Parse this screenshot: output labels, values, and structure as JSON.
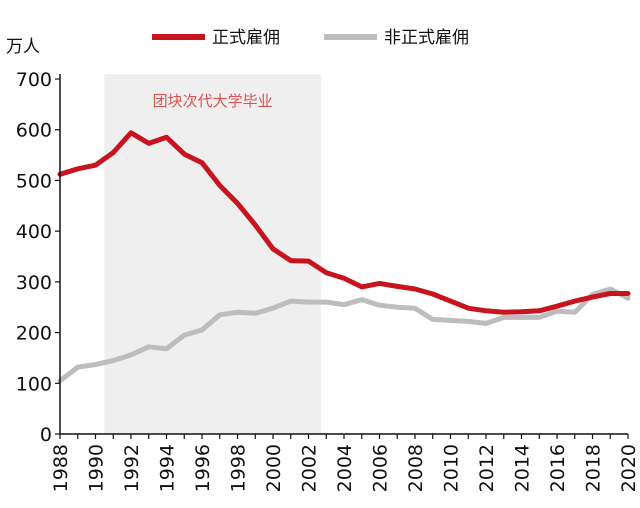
{
  "chart_data": {
    "type": "line",
    "unit_label": "万人",
    "ylim": [
      0,
      700
    ],
    "yticks": [
      0,
      100,
      200,
      300,
      400,
      500,
      600,
      700
    ],
    "xlim": [
      1988,
      2020
    ],
    "xticks": [
      1988,
      1990,
      1992,
      1994,
      1996,
      1998,
      2000,
      2002,
      2004,
      2006,
      2008,
      2010,
      2012,
      2014,
      2016,
      2018,
      2020
    ],
    "grid": false,
    "legend_position": "top",
    "highlight_band": {
      "from": 1990.5,
      "to": 2002.7,
      "label": "团块次代大学毕业",
      "color": "#efefef",
      "label_color": "#d9534f"
    },
    "x": [
      1988,
      1989,
      1990,
      1991,
      1992,
      1993,
      1994,
      1995,
      1996,
      1997,
      1998,
      1999,
      2000,
      2001,
      2002,
      2003,
      2004,
      2005,
      2006,
      2007,
      2008,
      2009,
      2010,
      2011,
      2012,
      2013,
      2014,
      2015,
      2016,
      2017,
      2018,
      2019,
      2020
    ],
    "series": [
      {
        "name": "正式雇佣",
        "color": "#c8141e",
        "values": [
          512,
          523,
          530,
          555,
          594,
          573,
          585,
          552,
          535,
          490,
          455,
          412,
          365,
          342,
          341,
          318,
          307,
          290,
          297,
          291,
          286,
          276,
          262,
          248,
          243,
          240,
          241,
          243,
          252,
          262,
          270,
          277,
          277
        ]
      },
      {
        "name": "非正式雇佣",
        "color": "#bdbdbd",
        "values": [
          105,
          132,
          137,
          145,
          156,
          172,
          168,
          195,
          205,
          235,
          240,
          238,
          248,
          262,
          260,
          260,
          255,
          265,
          254,
          250,
          248,
          226,
          224,
          222,
          218,
          230,
          230,
          230,
          242,
          240,
          275,
          286,
          268
        ]
      }
    ]
  }
}
